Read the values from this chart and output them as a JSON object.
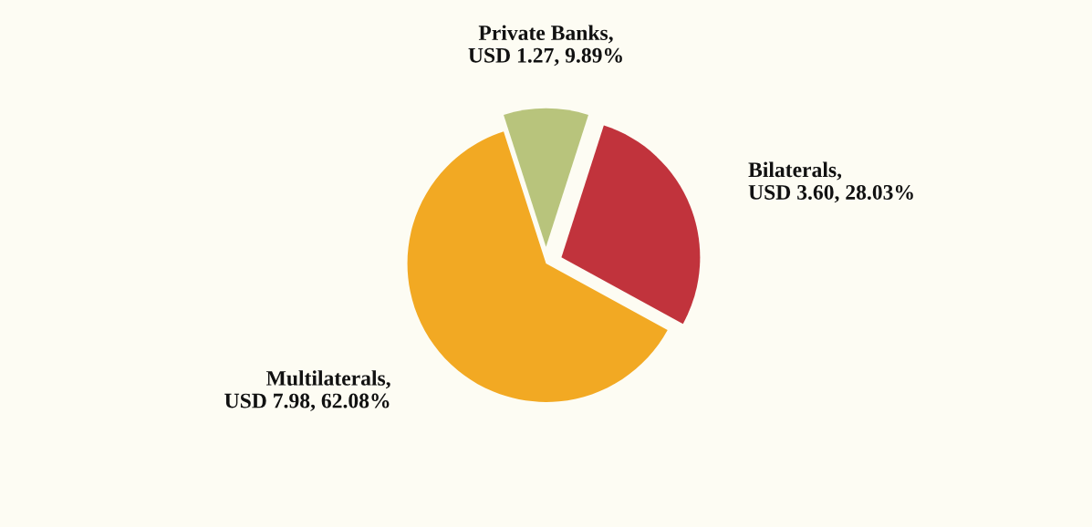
{
  "chart_data": {
    "type": "pie",
    "categories": [
      null,
      null,
      null
    ],
    "values": [
      9.89,
      28.03,
      62.08
    ],
    "value_labels": [
      "Private Banks, USD 1.27, 9.89%",
      "Bilaterals, USD 3.60, 28.03%",
      "Multilaterals, USD 7.98, 62.08%"
    ],
    "colors": [
      "#b8c47c",
      "#c1333c",
      "#f2a923"
    ],
    "legend": false
  }
}
